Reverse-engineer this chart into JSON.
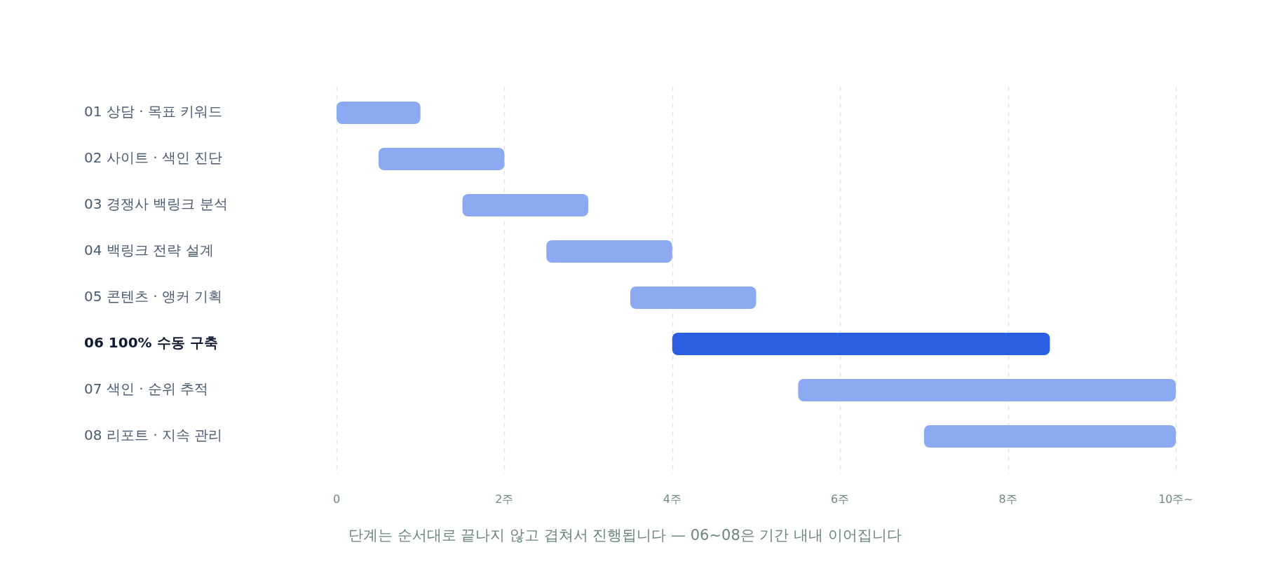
{
  "chart_data": {
    "type": "bar",
    "orientation": "horizontal",
    "categories": [
      "01 상담 · 목표 키워드",
      "02 사이트 · 색인 진단",
      "03 경쟁사 백링크 분석",
      "04 백링크 전략 설계",
      "05 콘텐츠 · 앵커 기획",
      "06 100% 수동 구축",
      "07 색인 · 순위 추적",
      "08 리포트 · 지속 관리"
    ],
    "base": [
      0,
      0.5,
      1.5,
      2.5,
      3.5,
      4,
      5.5,
      7
    ],
    "values": [
      1,
      1.5,
      1.5,
      1.5,
      1.5,
      4.5,
      4.5,
      3
    ],
    "colors": [
      "#8caaf2",
      "#8caaf2",
      "#8caaf2",
      "#8caaf2",
      "#8caaf2",
      "#2a5fe4",
      "#8caaf2",
      "#8caaf2"
    ],
    "xlim": [
      0,
      10
    ],
    "xticks": [
      0,
      {
        "value": 2,
        "label": "2주"
      },
      {
        "value": 4,
        "label": "4주"
      },
      {
        "value": 6,
        "label": "6주"
      },
      {
        "value": 8,
        "label": "8주"
      },
      {
        "value": 10,
        "label": "10주~"
      }
    ],
    "grid": "x",
    "annotations": [
      "단계는 순서대로 끝나지 않고 겹쳐서 진행됩니다 — 06~08은 기간 내내 이어집니다"
    ]
  }
}
